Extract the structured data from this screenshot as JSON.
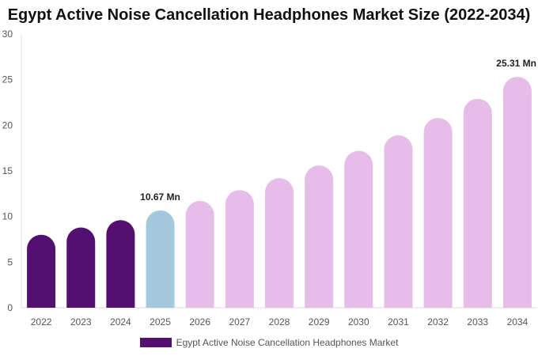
{
  "chart_data": {
    "type": "bar",
    "title": "Egypt Active Noise Cancellation Headphones Market Size (2022-2034)",
    "categories": [
      "2022",
      "2023",
      "2024",
      "2025",
      "2026",
      "2027",
      "2028",
      "2029",
      "2030",
      "2031",
      "2032",
      "2033",
      "2034"
    ],
    "series": [
      {
        "name": "Egypt Active Noise Cancellation Headphones Market",
        "values": [
          8.0,
          8.8,
          9.6,
          10.67,
          11.7,
          12.9,
          14.2,
          15.6,
          17.2,
          18.9,
          20.8,
          22.9,
          25.31
        ]
      }
    ],
    "ylim": [
      0,
      30
    ],
    "yticks": [
      0,
      5,
      10,
      15,
      20,
      25,
      30
    ],
    "grid": false,
    "legend_position": "bottom",
    "annotations": [
      {
        "index": 3,
        "text": "10.67 Mn"
      },
      {
        "index": 12,
        "text": "25.31 Mn"
      }
    ],
    "colors": {
      "historical": "#541070",
      "base_year": "#a4c9dd",
      "forecast": "#e6bde9",
      "legend": "#541070"
    }
  }
}
